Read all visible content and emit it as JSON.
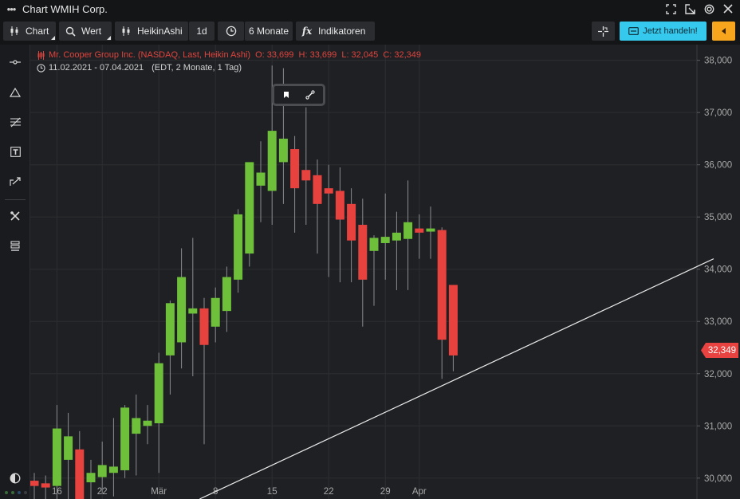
{
  "window": {
    "title": "Chart WMIH Corp.",
    "menu_icon": "dots-menu-icon"
  },
  "toolbar": {
    "chart_label": "Chart",
    "value_label": "Wert",
    "chart_type_label": "HeikinAshi",
    "interval_label": "1d",
    "range_label": "6 Monate",
    "indicators_label": "Indikatoren",
    "trade_label": "Jetzt handeln!"
  },
  "legend": {
    "instrument_line": "Mr. Cooper Group Inc. (NASDAQ, Last, Heikin Ashi)",
    "ohlc_line": "O: 33,699  H: 33,699  L: 32,045  C: 32,349",
    "date_range": "11.02.2021 - 07.04.2021",
    "time_info": "(EDT, 2 Monate, 1 Tag)"
  },
  "colors": {
    "up": "#6ec03b",
    "down": "#e8423f",
    "accent": "#35c9ee",
    "orange": "#f7a51d",
    "background": "#1e2023"
  },
  "chart_data": {
    "type": "candlestick",
    "style": "Heikin Ashi",
    "y_ticks": [
      "30,000",
      "31,000",
      "32,000",
      "33,000",
      "34,000",
      "35,000",
      "36,000",
      "37,000",
      "38,000"
    ],
    "ylim": [
      29.6,
      38.3
    ],
    "grid": true,
    "x_tick_labels": [
      {
        "label": "16",
        "index": 2
      },
      {
        "label": "22",
        "index": 6
      },
      {
        "label": "Mär",
        "index": 11
      },
      {
        "label": "8",
        "index": 16
      },
      {
        "label": "15",
        "index": 21
      },
      {
        "label": "22",
        "index": 26
      },
      {
        "label": "29",
        "index": 31
      },
      {
        "label": "Apr",
        "index": 34
      }
    ],
    "last_price": "32,349",
    "last_value": 32.349,
    "candles": [
      {
        "o": 29.95,
        "h": 30.1,
        "l": 29.5,
        "c": 29.85
      },
      {
        "o": 29.9,
        "h": 30.05,
        "l": 29.5,
        "c": 29.82
      },
      {
        "o": 29.85,
        "h": 31.4,
        "l": 29.55,
        "c": 30.95
      },
      {
        "o": 30.35,
        "h": 31.25,
        "l": 29.6,
        "c": 30.8
      },
      {
        "o": 30.55,
        "h": 30.9,
        "l": 29.5,
        "c": 29.55
      },
      {
        "o": 29.92,
        "h": 30.35,
        "l": 29.5,
        "c": 30.1
      },
      {
        "o": 30.02,
        "h": 30.7,
        "l": 29.7,
        "c": 30.25
      },
      {
        "o": 30.1,
        "h": 31.15,
        "l": 29.65,
        "c": 30.22
      },
      {
        "o": 30.15,
        "h": 31.4,
        "l": 30.0,
        "c": 31.35
      },
      {
        "o": 30.85,
        "h": 31.6,
        "l": 30.05,
        "c": 31.15
      },
      {
        "o": 31.0,
        "h": 31.4,
        "l": 30.65,
        "c": 31.1
      },
      {
        "o": 31.05,
        "h": 32.4,
        "l": 30.1,
        "c": 32.2
      },
      {
        "o": 32.35,
        "h": 33.4,
        "l": 31.6,
        "c": 33.35
      },
      {
        "o": 32.6,
        "h": 34.4,
        "l": 32.1,
        "c": 33.85
      },
      {
        "o": 33.15,
        "h": 34.6,
        "l": 31.95,
        "c": 33.25
      },
      {
        "o": 33.25,
        "h": 33.45,
        "l": 30.65,
        "c": 32.55
      },
      {
        "o": 32.9,
        "h": 33.65,
        "l": 32.6,
        "c": 33.45
      },
      {
        "o": 33.2,
        "h": 34.05,
        "l": 32.8,
        "c": 33.85
      },
      {
        "o": 33.8,
        "h": 35.15,
        "l": 33.55,
        "c": 35.05
      },
      {
        "o": 34.3,
        "h": 36.0,
        "l": 34.05,
        "c": 36.05
      },
      {
        "o": 35.6,
        "h": 36.45,
        "l": 34.9,
        "c": 35.85
      },
      {
        "o": 35.5,
        "h": 37.9,
        "l": 34.85,
        "c": 36.65
      },
      {
        "o": 36.05,
        "h": 37.85,
        "l": 35.25,
        "c": 36.5
      },
      {
        "o": 36.3,
        "h": 36.55,
        "l": 34.7,
        "c": 35.55
      },
      {
        "o": 35.9,
        "h": 37.1,
        "l": 34.85,
        "c": 35.7
      },
      {
        "o": 35.8,
        "h": 36.1,
        "l": 34.3,
        "c": 35.25
      },
      {
        "o": 35.55,
        "h": 36.0,
        "l": 33.85,
        "c": 35.45
      },
      {
        "o": 35.5,
        "h": 35.95,
        "l": 33.75,
        "c": 34.95
      },
      {
        "o": 35.25,
        "h": 35.55,
        "l": 33.75,
        "c": 34.55
      },
      {
        "o": 34.85,
        "h": 35.35,
        "l": 32.9,
        "c": 33.8
      },
      {
        "o": 34.35,
        "h": 34.65,
        "l": 33.3,
        "c": 34.6
      },
      {
        "o": 34.5,
        "h": 35.45,
        "l": 33.8,
        "c": 34.62
      },
      {
        "o": 34.55,
        "h": 35.1,
        "l": 33.6,
        "c": 34.7
      },
      {
        "o": 34.58,
        "h": 35.7,
        "l": 33.6,
        "c": 34.9
      },
      {
        "o": 34.78,
        "h": 35.05,
        "l": 34.2,
        "c": 34.7
      },
      {
        "o": 34.72,
        "h": 35.2,
        "l": 34.2,
        "c": 34.78
      },
      {
        "o": 34.75,
        "h": 34.8,
        "l": 31.9,
        "c": 32.65
      },
      {
        "o": 33.699,
        "h": 33.699,
        "l": 32.045,
        "c": 32.349
      }
    ],
    "trendline": {
      "from": {
        "index": 14.6,
        "value": 29.6
      },
      "to": {
        "index": 60,
        "value": 34.2
      }
    }
  }
}
